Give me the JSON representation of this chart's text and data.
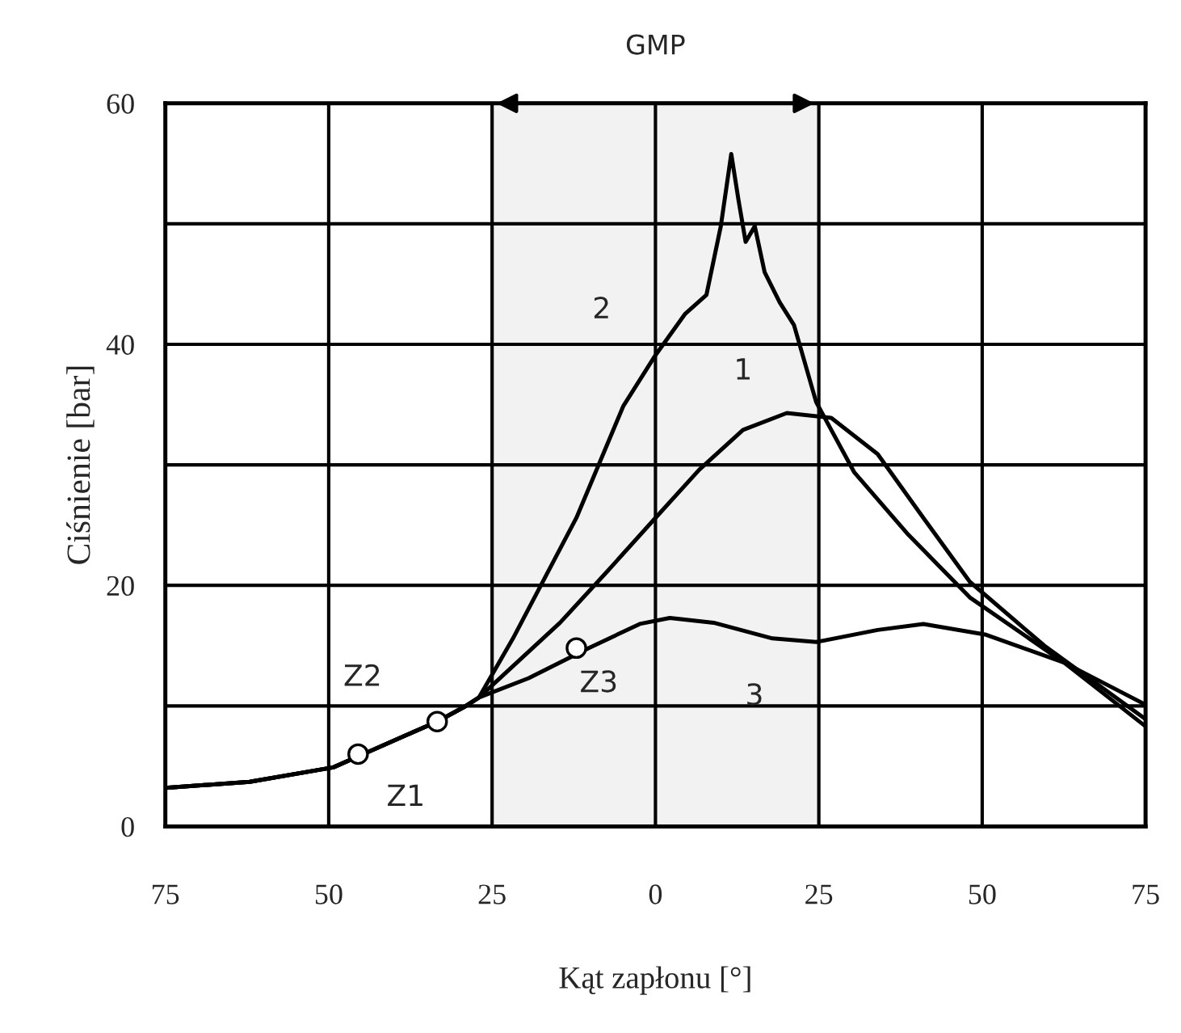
{
  "chart_data": {
    "type": "line",
    "xlabel": "Kąt zapłonu [°]",
    "ylabel": "Ciśnienie [bar]",
    "xlim": [
      -75,
      75
    ],
    "ylim": [
      0,
      60
    ],
    "xticks": [
      {
        "value": -75,
        "label": "75"
      },
      {
        "value": -50,
        "label": "50"
      },
      {
        "value": -25,
        "label": "25"
      },
      0,
      25,
      50,
      75
    ],
    "yticks": [
      0,
      {
        "value": 10,
        "label": null
      },
      20,
      {
        "value": 30,
        "label": null
      },
      40,
      {
        "value": 50,
        "label": null
      },
      60
    ],
    "grid": true,
    "line_style": "solid",
    "marker": "none",
    "series": [
      {
        "color": "#000000",
        "x": [
          -75,
          -62.1,
          -49.3,
          -44.3,
          -38,
          -33.4,
          -29.3,
          -27,
          -14.6,
          -7.3,
          0,
          6.7,
          13.4,
          20.1,
          26.9,
          34,
          41,
          48.1,
          59.5,
          75
        ],
        "values": [
          3.2,
          3.7,
          4.9,
          6.1,
          7.6,
          8.7,
          9.9,
          10.7,
          16.9,
          21.2,
          25.6,
          29.6,
          32.9,
          34.3,
          33.9,
          30.9,
          25.6,
          20.3,
          15,
          8.9
        ]
      },
      {
        "color": "#000000",
        "x": [
          -75,
          -62.1,
          -49.3,
          -44.3,
          -38,
          -33.4,
          -29.3,
          -27,
          -21.8,
          -12.1,
          -4.9,
          0,
          4.5,
          7.8,
          10,
          11.6,
          12.7,
          13.8,
          15.2,
          16.7,
          19,
          21.2,
          24.6,
          30.4,
          38.7,
          48.1,
          62.5,
          75
        ],
        "values": [
          3.2,
          3.7,
          4.9,
          6.1,
          7.6,
          8.7,
          9.9,
          10.7,
          15.6,
          25.6,
          34.9,
          39.1,
          42.5,
          44.1,
          49.8,
          55.8,
          52,
          48.5,
          49.8,
          46,
          43.5,
          41.6,
          35.2,
          29.4,
          24.2,
          19,
          13.6,
          8.3
        ]
      },
      {
        "color": "#000000",
        "x": [
          -75,
          -62.1,
          -49.3,
          -44.3,
          -38,
          -33.4,
          -29.3,
          -27,
          -19.4,
          -10.2,
          -2.4,
          2.2,
          8.9,
          17.9,
          24.6,
          34,
          41,
          50.6,
          62.5,
          75
        ],
        "values": [
          3.2,
          3.7,
          4.9,
          6.1,
          7.6,
          8.7,
          9.9,
          10.7,
          12.3,
          14.8,
          16.8,
          17.3,
          16.9,
          15.6,
          15.3,
          16.3,
          16.8,
          15.9,
          13.6,
          10.1
        ]
      },
      {
        "type": "scatter",
        "color": "#000000",
        "marker": "circle",
        "x": [
          -45.5,
          -33.4,
          -12.1
        ],
        "values": [
          6,
          8.7,
          14.8
        ]
      }
    ],
    "bands": [
      {
        "axis": "x",
        "from": -25,
        "to": 25,
        "label": "GMP",
        "color": "#f2f2f2"
      }
    ],
    "annotations": [
      {
        "text": "1",
        "x": 13.4,
        "y": 32.9
      },
      {
        "text": "2",
        "x": 0,
        "y": 39.1
      },
      {
        "text": "3",
        "x": 17.9,
        "y": 15.6
      },
      {
        "text": "Z1",
        "x": -33.4,
        "y": 8.7
      },
      {
        "text": "Z2",
        "x": -45.5,
        "y": 6
      },
      {
        "text": "Z3",
        "x": -12.1,
        "y": 14.8
      }
    ]
  }
}
